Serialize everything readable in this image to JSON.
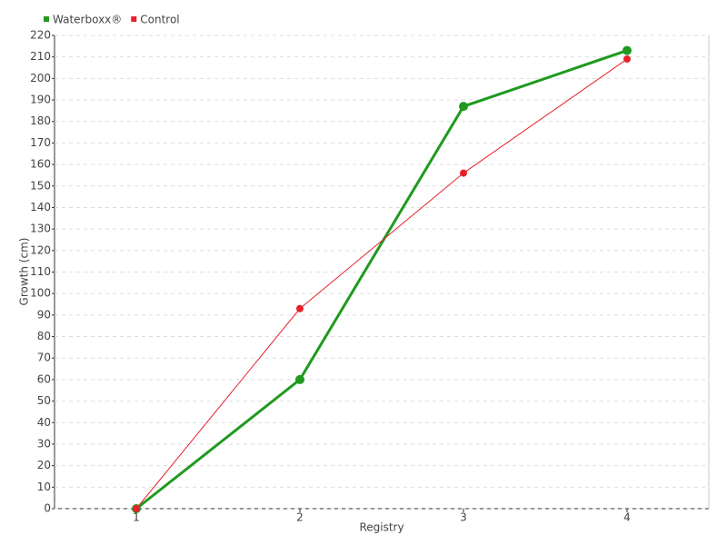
{
  "chart_data": {
    "type": "line",
    "x_label": "Registry",
    "y_label": "Growth (cm)",
    "categories": [
      "1",
      "2",
      "3",
      "4"
    ],
    "series": [
      {
        "name": "Waterboxx®",
        "color": "#1f9a1f",
        "values": [
          0,
          60,
          187,
          213
        ]
      },
      {
        "name": "Control",
        "color": "#e8202a",
        "values": [
          0,
          93,
          156,
          209
        ]
      }
    ],
    "ylim": [
      0,
      220
    ],
    "yticks": [
      0,
      10,
      20,
      30,
      40,
      50,
      60,
      70,
      80,
      90,
      100,
      110,
      120,
      130,
      140,
      150,
      160,
      170,
      180,
      190,
      200,
      210,
      220
    ],
    "grid": true,
    "legend": "top-left"
  }
}
